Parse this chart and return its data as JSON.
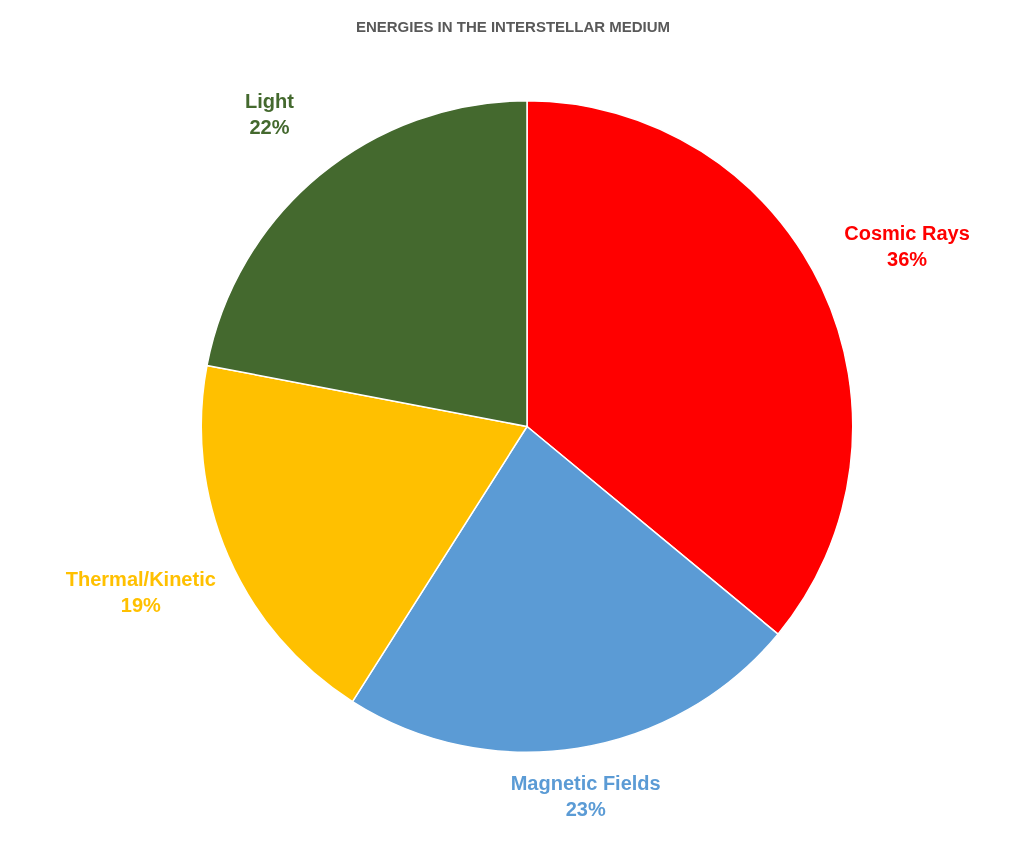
{
  "chart_data": {
    "type": "pie",
    "title": "ENERGIES IN THE INTERSTELLAR MEDIUM",
    "categories": [
      "Cosmic Rays",
      "Magnetic Fields",
      "Thermal/Kinetic",
      "Light"
    ],
    "values": [
      36,
      23,
      19,
      22
    ],
    "colors": [
      "#ff0000",
      "#5b9bd5",
      "#ffc000",
      "#44692e"
    ],
    "value_labels": [
      "36%",
      "23%",
      "19%",
      "22%"
    ],
    "legend": false
  }
}
